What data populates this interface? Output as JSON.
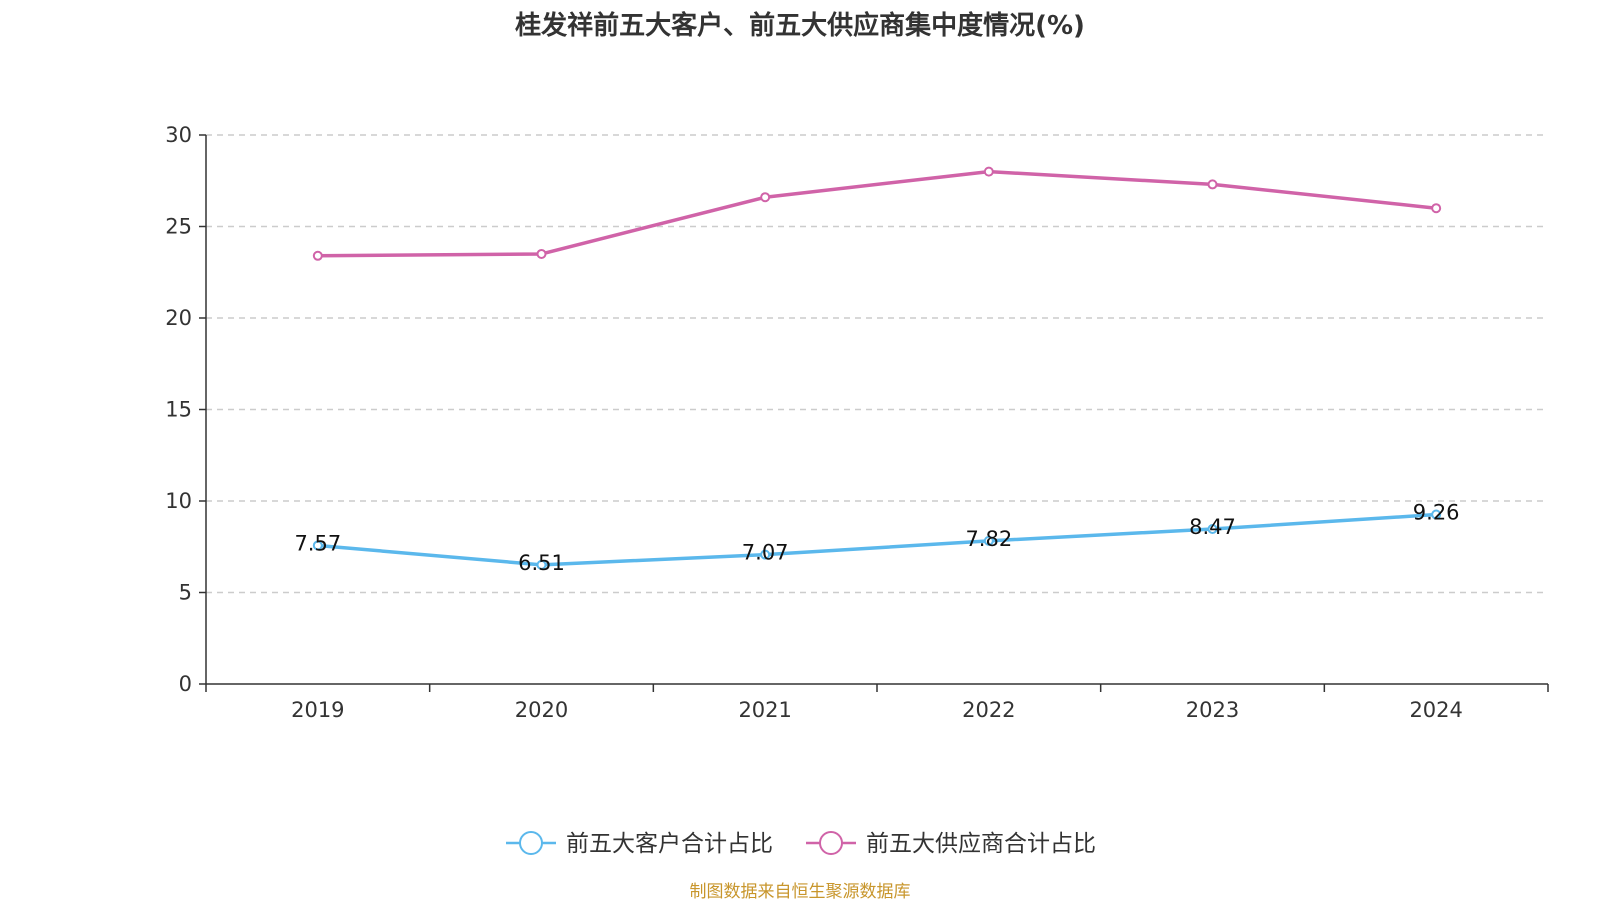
{
  "chart_data": {
    "type": "line",
    "title": "桂发祥前五大客户、前五大供应商集中度情况(%)",
    "xlabel": "",
    "ylabel": "",
    "categories": [
      "2019",
      "2020",
      "2021",
      "2022",
      "2023",
      "2024"
    ],
    "ylim": [
      0,
      30
    ],
    "yticks": [
      0,
      5,
      10,
      15,
      20,
      25,
      30
    ],
    "grid": "horizontal-dashed",
    "legend": "bottom-center",
    "series": [
      {
        "name": "前五大客户合计占比",
        "color": "#5bb8ec",
        "values": [
          7.57,
          6.51,
          7.07,
          7.82,
          8.47,
          9.26
        ],
        "labels": [
          "7.57",
          "6.51",
          "7.07",
          "7.82",
          "8.47",
          "9.26"
        ],
        "show_labels": true
      },
      {
        "name": "前五大供应商合计占比",
        "color": "#d063a8",
        "values": [
          23.4,
          23.5,
          26.6,
          28.0,
          27.3,
          26.0
        ],
        "show_labels": false
      }
    ]
  },
  "source_note": "制图数据来自恒生聚源数据库"
}
